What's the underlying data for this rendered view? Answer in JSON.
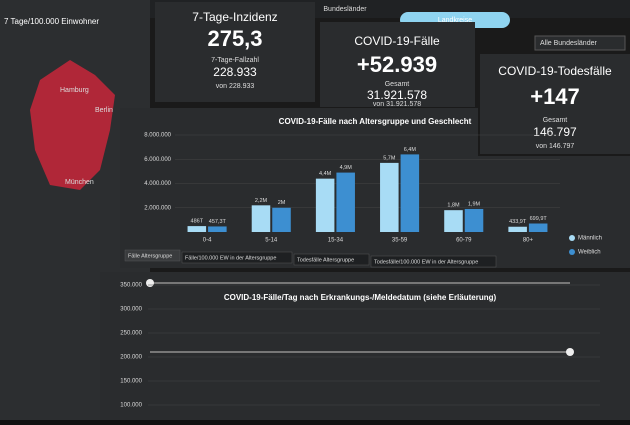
{
  "top_bar": {
    "tab_left": "Bundesländer",
    "tab_right": "Landkreise",
    "dropdown": "Alle Bundesländer"
  },
  "map": {
    "title": "7 Tage/100.000 Einwohner",
    "labels": [
      "Hamburg",
      "Berlin",
      "München"
    ]
  },
  "kpis": [
    {
      "title": "7-Tage-Inzidenz",
      "value": "275,3",
      "sub_label": "7-Tage-Fallzahl",
      "sub_value": "228.933",
      "note": "von 228.933"
    },
    {
      "title": "COVID-19-Fälle",
      "value": "+52.939",
      "sub_label": "Gesamt",
      "sub_value": "31.921.578",
      "note": "von 31.921.578"
    },
    {
      "title": "COVID-19-Todesfälle",
      "value": "+147",
      "sub_label": "Gesamt",
      "sub_value": "146.797",
      "note": "von 146.797"
    }
  ],
  "bar_chart": {
    "type": "bar",
    "title": "COVID-19-Fälle nach Altersgruppe und Geschlecht",
    "categories": [
      "0-4",
      "5-14",
      "15-34",
      "35-59",
      "60-79",
      "80+"
    ],
    "series": [
      {
        "name": "Männlich",
        "color": "#a8dcf5",
        "values": [
          486000,
          2200000,
          4400000,
          5700000,
          1800000,
          433900
        ],
        "value_labels": [
          "486T",
          "2,2M",
          "4,4M",
          "5,7M",
          "1,8M",
          "433,9T"
        ]
      },
      {
        "name": "Weiblich",
        "color": "#3d8fd1",
        "values": [
          457300,
          2000000,
          4900000,
          6400000,
          1900000,
          699900
        ],
        "value_labels": [
          "457,3T",
          "2M",
          "4,9M",
          "6,4M",
          "1,9M",
          "699,9T"
        ]
      }
    ],
    "ylim": [
      0,
      8000000
    ],
    "yticks": [
      {
        "value": 2000000,
        "label": "2.000.000"
      },
      {
        "value": 4000000,
        "label": "4.000.000"
      },
      {
        "value": 6000000,
        "label": "6.000.000"
      },
      {
        "value": 8000000,
        "label": "8.000.000"
      }
    ],
    "tabs": [
      "Fälle Altersgruppe",
      "Fälle/100.000 EW in der Altersgruppe",
      "Todesfälle Altersgruppe",
      "Todesfälle/100.000 EW in der Altersgruppe"
    ]
  },
  "line_chart": {
    "type": "line",
    "title": "COVID-19-Fälle/Tag nach Erkrankungs-/Meldedatum (siehe Erläuterung)",
    "ylim": [
      100000,
      350000
    ],
    "yticks": [
      {
        "value": 100000,
        "label": "100.000"
      },
      {
        "value": 150000,
        "label": "150.000"
      },
      {
        "value": 200000,
        "label": "200.000"
      },
      {
        "value": 250000,
        "label": "250.000"
      },
      {
        "value": 300000,
        "label": "300.000"
      },
      {
        "value": 350000,
        "label": "350.000"
      }
    ]
  }
}
